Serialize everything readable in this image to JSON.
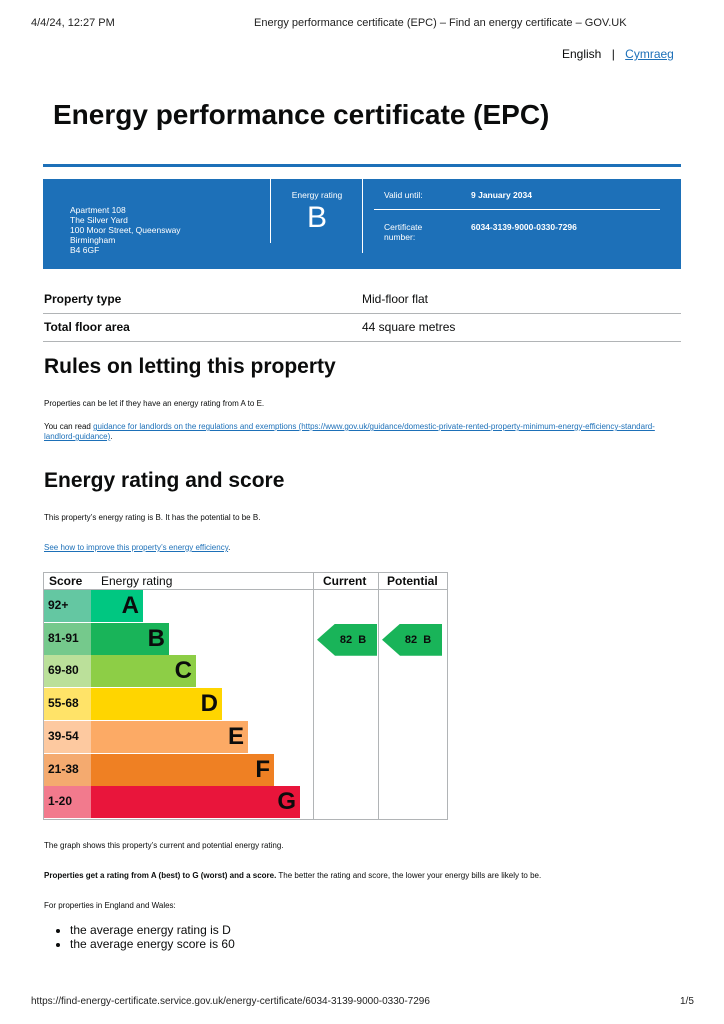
{
  "browser": {
    "datetime": "4/4/24, 12:27 PM",
    "title": "Energy performance certificate (EPC) – Find an energy certificate – GOV.UK",
    "url": "https://find-energy-certificate.service.gov.uk/energy-certificate/6034-3139-9000-0330-7296",
    "page": "1/5"
  },
  "lang": {
    "english": "English",
    "sep": "|",
    "welsh": "Cymraeg"
  },
  "title": "Energy performance certificate (EPC)",
  "banner": {
    "address": [
      "Apartment 108",
      "The Silver Yard",
      "100 Moor Street, Queensway",
      "Birmingham",
      "B4 6GF"
    ],
    "rating_label": "Energy rating",
    "rating": "B",
    "valid_label": "Valid until:",
    "valid_value": "9 January 2034",
    "cert_label": "Certificate number:",
    "cert_value": "6034-3139-9000-0330-7296"
  },
  "property": [
    {
      "label": "Property type",
      "value": "Mid-floor flat"
    },
    {
      "label": "Total floor area",
      "value": "44 square metres"
    }
  ],
  "rules": {
    "heading": "Rules on letting this property",
    "p1": "Properties can be let if they have an energy rating from A to E.",
    "p2_pre": "You can read ",
    "p2_link": "guidance for landlords on the regulations and exemptions (https://www.gov.uk/guidance/domestic-private-rented-property-minimum-energy-efficiency-standard-landlord-guidance)",
    "p2_post": "."
  },
  "score": {
    "heading": "Energy rating and score",
    "p1": "This property’s energy rating is B. It has the potential to be B.",
    "link": "See how to improve this property’s energy efficiency",
    "link_post": ".",
    "graph_note": "The graph shows this property’s current and potential energy rating.",
    "bold": "Properties get a rating from A (best) to G (worst) and a score.",
    "rest": " The better the rating and score, the lower your energy bills are likely to be.",
    "ew": "For properties in England and Wales:",
    "bullets": [
      "the average energy rating is D",
      "the average energy score is 60"
    ]
  },
  "chart_data": {
    "type": "table",
    "headers": [
      "Score",
      "Energy rating",
      "Current",
      "Potential"
    ],
    "bands": [
      {
        "score": "92+",
        "letter": "A",
        "color": "#00c781",
        "light": "#64c7a2"
      },
      {
        "score": "81-91",
        "letter": "B",
        "color": "#19b459",
        "light": "#75c98c"
      },
      {
        "score": "69-80",
        "letter": "C",
        "color": "#8dce46",
        "light": "#bbe09a"
      },
      {
        "score": "55-68",
        "letter": "D",
        "color": "#ffd500",
        "light": "#ffe368"
      },
      {
        "score": "39-54",
        "letter": "E",
        "color": "#fcaa65",
        "light": "#fdc9a0"
      },
      {
        "score": "21-38",
        "letter": "F",
        "color": "#ef8023",
        "light": "#f4aa6f"
      },
      {
        "score": "1-20",
        "letter": "G",
        "color": "#e9153b",
        "light": "#f27a8d"
      }
    ],
    "current": {
      "score": "82",
      "letter": "B",
      "label": "82  B"
    },
    "potential": {
      "score": "82",
      "letter": "B",
      "label": "82  B"
    }
  }
}
